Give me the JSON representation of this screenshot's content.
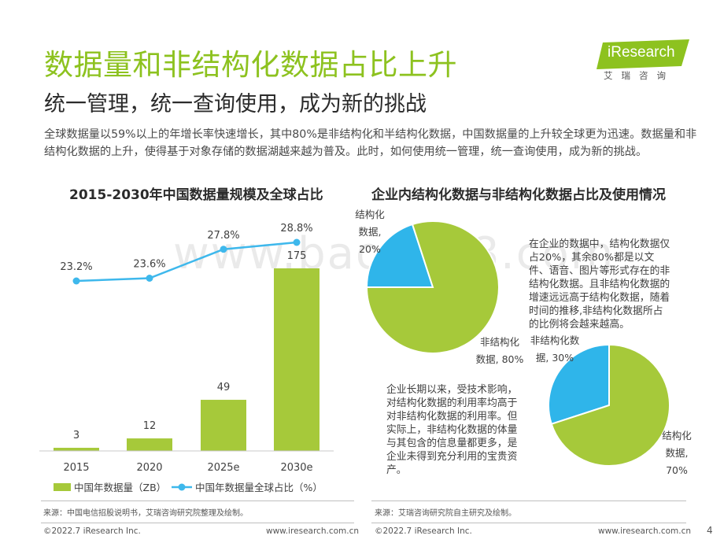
{
  "header": {
    "title": "数据量和非结构化数据占比上升",
    "subtitle": "统一管理，统一查询使用，成为新的挑战",
    "intro": "全球数据量以59%以上的年增长率快速增长，其中80%是非结构化和半结构化数据，中国数据量的上升较全球更为迅速。数据量和非结构化数据的上升，使得基于对象存储的数据湖越来越为普及。此时，如何使用统一管理，统一查询使用，成为新的挑战。"
  },
  "logo": {
    "text": "iResearch",
    "cn": "艾瑞咨询"
  },
  "watermark": "www.baogao8.com",
  "left_chart": {
    "title": "2015-2030年中国数据量规模及全球占比",
    "source": "来源：中国电信招股说明书，艾瑞咨询研究院整理及绘制。"
  },
  "right_chart": {
    "title": "企业内结构化数据与非结构化数据占比及使用情况",
    "note1": "在企业的数据中，结构化数据仅占20%，其余80%都是以文件、语音、图片等形式存在的非结构化数据。且非结构化数据的增速远远高于结构化数据，随着时间的推移,非结构化数据所占的比例将会越来越高。",
    "note2": "企业长期以来，受技术影响，对结构化数据的利用率均高于对非结构化数据的利用率。但实际上，非结构化数据的体量与其包含的信息量都更多，是企业未得到充分利用的宝贵资产。",
    "pie1_struct_label": "结构化\n数据,\n20%",
    "pie1_unstruct_label": "非结构化\n数据, 80%",
    "pie2_unstruct_label": "非结构化数\n据, 30%",
    "pie2_struct_label": "结构化\n数据,\n70%",
    "source": "来源：艾瑞咨询研究院自主研究及绘制。"
  },
  "footer": {
    "copyright_left": "©2022.7 iResearch Inc.",
    "url_left": "www.iresearch.com.cn",
    "copyright_right": "©2022.7 iResearch Inc.",
    "url_right": "www.iresearch.com.cn",
    "page": "4"
  },
  "colors": {
    "green": "#a6c93a",
    "blue": "#2fb5ea",
    "title_green": "#8dc21f",
    "line_blue": "#3eb8ec"
  },
  "chart_data": [
    {
      "type": "bar",
      "categories": [
        "2015",
        "2020",
        "2025e",
        "2030e"
      ],
      "series": [
        {
          "name": "中国年数据量（ZB）",
          "kind": "bar",
          "values": [
            3,
            12,
            49,
            175
          ],
          "labels": [
            "3",
            "12",
            "49",
            "175"
          ]
        },
        {
          "name": "中国年数据量全球占比（%）",
          "kind": "line",
          "values": [
            23.2,
            23.6,
            27.8,
            28.8
          ],
          "labels": [
            "23.2%",
            "23.6%",
            "27.8%",
            "28.8%"
          ]
        }
      ],
      "legend": "bottom"
    },
    {
      "type": "pie",
      "slices": [
        {
          "name": "结构化数据",
          "value": 20,
          "color": "#2fb5ea"
        },
        {
          "name": "非结构化数据",
          "value": 80,
          "color": "#a6c93a"
        }
      ]
    },
    {
      "type": "pie",
      "slices": [
        {
          "name": "非结构化数据",
          "value": 30,
          "color": "#2fb5ea"
        },
        {
          "name": "结构化数据",
          "value": 70,
          "color": "#a6c93a"
        }
      ]
    }
  ]
}
